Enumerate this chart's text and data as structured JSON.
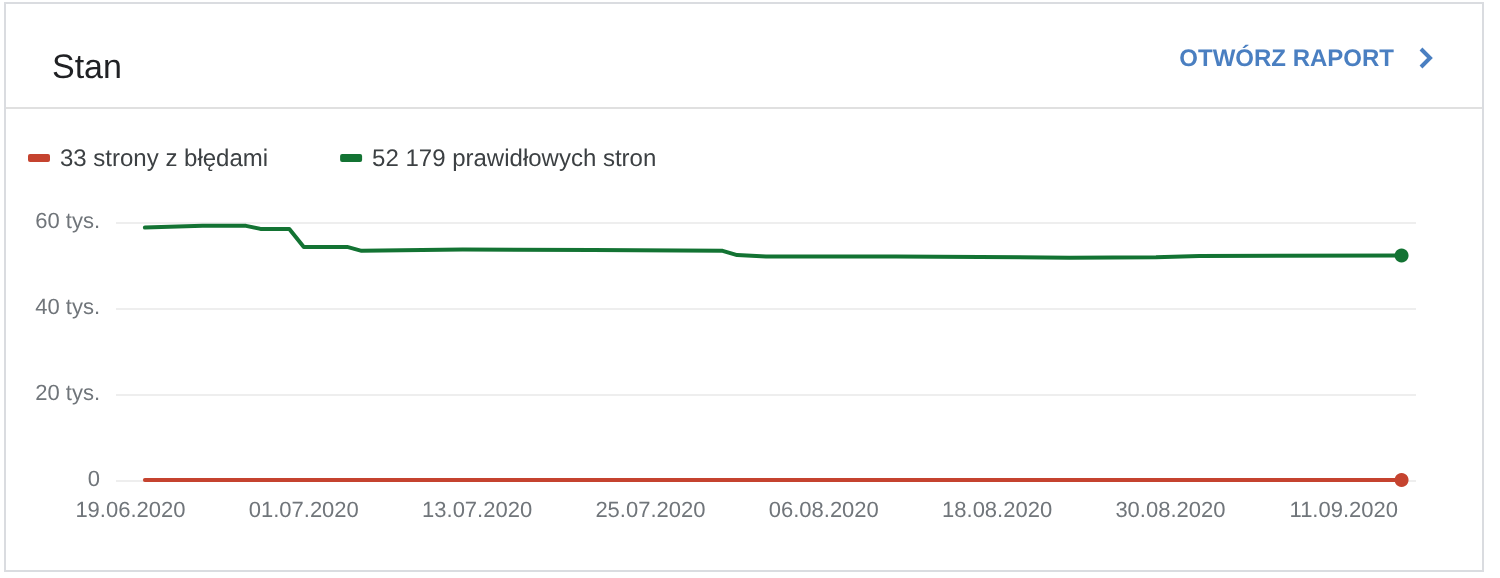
{
  "chart_data": {
    "type": "line",
    "title": "Stan",
    "annotations": [
      "OTWÓRZ RAPORT"
    ],
    "x": [
      "2020-06-20",
      "2020-06-24",
      "2020-06-27",
      "2020-06-28",
      "2020-06-30",
      "2020-07-01",
      "2020-07-04",
      "2020-07-05",
      "2020-07-12",
      "2020-07-21",
      "2020-07-30",
      "2020-07-31",
      "2020-08-02",
      "2020-08-11",
      "2020-08-23",
      "2020-08-29",
      "2020-09-01",
      "2020-09-15"
    ],
    "series": [
      {
        "name": "33 strony z błędami",
        "color": "#c5432f",
        "x": [
          "2020-06-20",
          "2020-09-15"
        ],
        "values": [
          0,
          0
        ]
      },
      {
        "name": "52 179 prawidłowych stron",
        "color": "#137333",
        "values": [
          58.7,
          59.1,
          59.1,
          58.4,
          58.4,
          54.2,
          54.2,
          53.3,
          53.6,
          53.5,
          53.3,
          52.3,
          52.0,
          52.0,
          51.7,
          51.8,
          52.1,
          52.2
        ]
      }
    ],
    "xlim": [
      "2020-06-18",
      "2020-09-16"
    ],
    "xticks": [
      {
        "value": "2020-06-19",
        "label": "19.06.2020"
      },
      {
        "value": "2020-07-01",
        "label": "01.07.2020"
      },
      {
        "value": "2020-07-13",
        "label": "13.07.2020"
      },
      {
        "value": "2020-07-25",
        "label": "25.07.2020"
      },
      {
        "value": "2020-08-06",
        "label": "06.08.2020"
      },
      {
        "value": "2020-08-18",
        "label": "18.08.2020"
      },
      {
        "value": "2020-08-30",
        "label": "30.08.2020"
      },
      {
        "value": "2020-09-11",
        "label": "11.09.2020"
      }
    ],
    "ylim": [
      0,
      60
    ],
    "yticks": [
      0,
      {
        "value": 20,
        "label": "20 tys."
      },
      {
        "value": 40,
        "label": "40 tys."
      },
      {
        "value": 60,
        "label": "60 tys."
      }
    ],
    "grid": "y",
    "legend": "top left",
    "line_style": "solid"
  }
}
